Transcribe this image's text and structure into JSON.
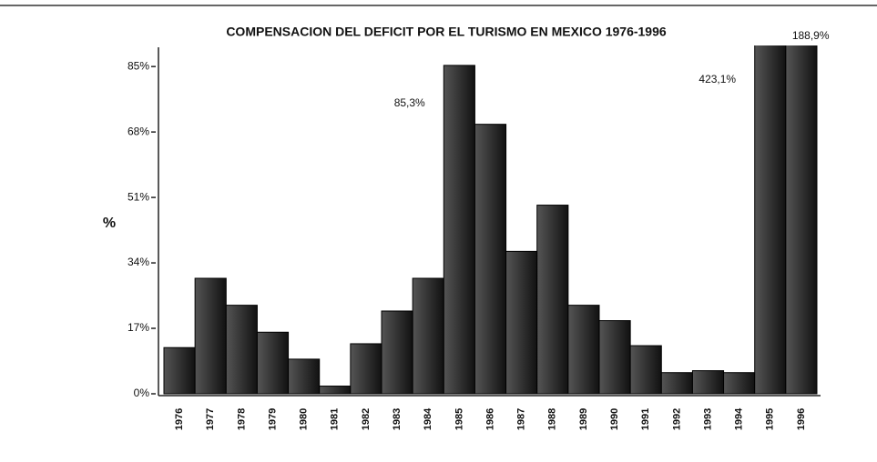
{
  "chart_data": {
    "type": "bar",
    "title": "COMPENSACION DEL DEFICIT POR EL TURISMO EN MEXICO 1976-1996",
    "y_label": "%",
    "categories": [
      "1976",
      "1977",
      "1978",
      "1979",
      "1980",
      "1981",
      "1982",
      "1983",
      "1984",
      "1985",
      "1986",
      "1987",
      "1988",
      "1989",
      "1990",
      "1991",
      "1992",
      "1993",
      "1994",
      "1995",
      "1996"
    ],
    "values": [
      12,
      30,
      23,
      16,
      9,
      2,
      13,
      21.5,
      30,
      85.3,
      70,
      37,
      49,
      23,
      19,
      12.5,
      5.5,
      6,
      5.5,
      423.1,
      188.9
    ],
    "value_labels": [
      null,
      null,
      null,
      null,
      null,
      null,
      null,
      null,
      null,
      "85,3%",
      null,
      null,
      null,
      null,
      null,
      null,
      null,
      null,
      null,
      "423,1%",
      "188,9%"
    ],
    "color": "#222222",
    "ylim": [
      0,
      90
    ],
    "yticks": [
      {
        "value": 0,
        "label": "0%"
      },
      {
        "value": 17,
        "label": "17%"
      },
      {
        "value": 34,
        "label": "34%"
      },
      {
        "value": 51,
        "label": "51%"
      },
      {
        "value": 68,
        "label": "68%"
      },
      {
        "value": 85,
        "label": "85%"
      }
    ]
  }
}
